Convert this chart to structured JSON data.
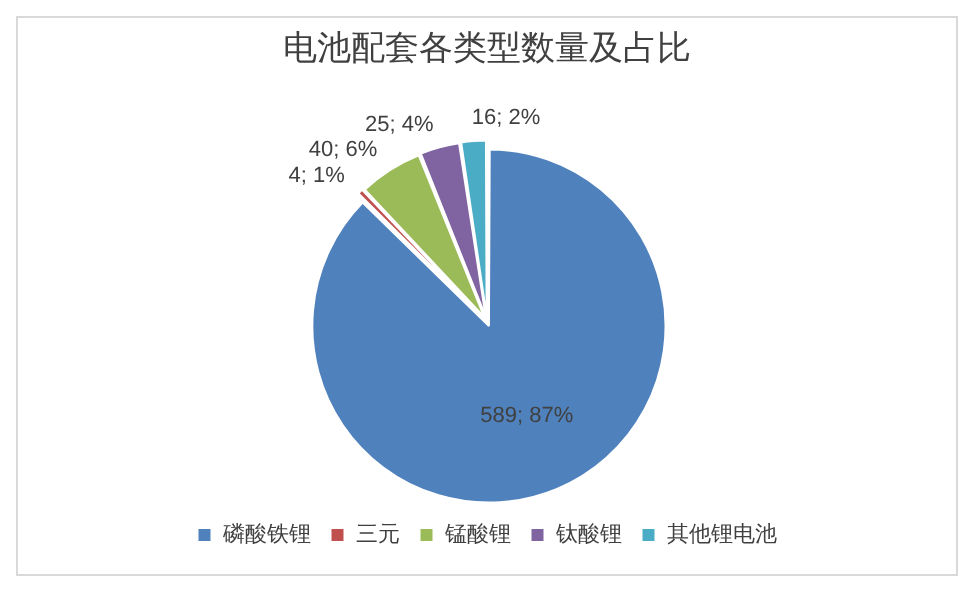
{
  "chart_data": {
    "type": "pie",
    "title": "电池配套各类型数量及占比",
    "categories": [
      "磷酸铁锂",
      "三元",
      "锰酸锂",
      "钛酸锂",
      "其他锂电池"
    ],
    "values": [
      589,
      4,
      40,
      25,
      16
    ],
    "colors": [
      "#4f81bd",
      "#c0504d",
      "#9bbb59",
      "#8064a2",
      "#4bacc6"
    ],
    "value_labels": [
      "589; 87%",
      "4; 1%",
      "40; 6%",
      "25; 4%",
      "16; 2%"
    ],
    "legend": "bottom"
  }
}
